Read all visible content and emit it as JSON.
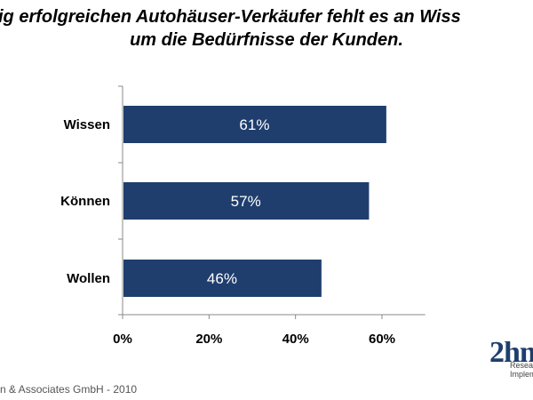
{
  "title": {
    "line1": "ig erfolgreichen Autohäuser-Verkäufer fehlt es an Wiss",
    "line2": "um die Bedürfnisse der Kunden."
  },
  "footer": "n  & Associates GmbH - 2010",
  "logo": {
    "main": "2hm",
    "sub1": "Research",
    "sub2": "Implem"
  },
  "colors": {
    "bar": "#1f3e6d",
    "axis": "#888888"
  },
  "chart_data": {
    "type": "bar",
    "orientation": "horizontal",
    "categories": [
      "Wissen",
      "Können",
      "Wollen"
    ],
    "values": [
      61,
      57,
      46
    ],
    "value_labels": [
      "61%",
      "57%",
      "46%"
    ],
    "xlim": [
      0,
      70
    ],
    "ticks": [
      0,
      20,
      40,
      60
    ],
    "tick_labels": [
      "0%",
      "20%",
      "40%",
      "60%"
    ],
    "grid": false,
    "legend": "none"
  }
}
